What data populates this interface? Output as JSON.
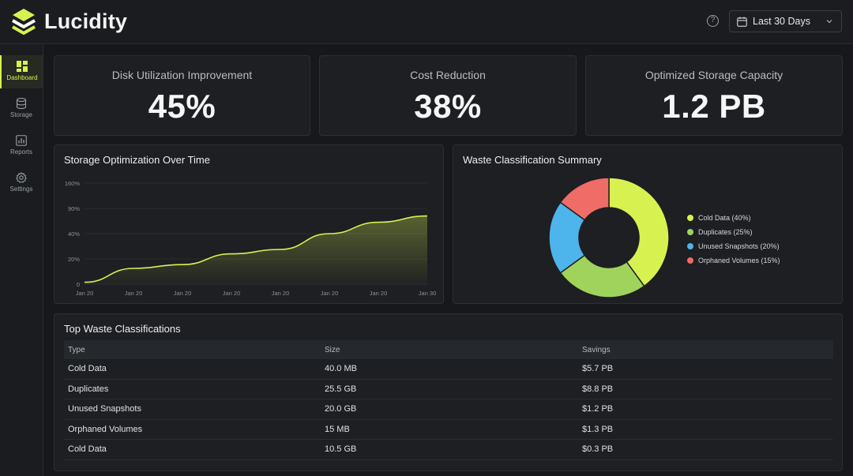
{
  "app": {
    "name": "Lucidity"
  },
  "header": {
    "date_range": "Last 30 Days",
    "help_icon": "help-circle-icon"
  },
  "sidebar": {
    "items": [
      {
        "label": "Dashboard",
        "icon": "grid-icon"
      },
      {
        "label": "Storage",
        "icon": "database-icon"
      },
      {
        "label": "Reports",
        "icon": "bar-chart-icon"
      },
      {
        "label": "Settings",
        "icon": "gear-icon"
      }
    ]
  },
  "kpis": [
    {
      "label": "Disk Utilization Improvement",
      "value": "45%"
    },
    {
      "label": "Cost Reduction",
      "value": "38%"
    },
    {
      "label": "Optimized Storage Capacity",
      "value": "1.2 PB"
    }
  ],
  "colors": {
    "accent": "#d7f250",
    "green": "#9fd35c",
    "blue": "#4db4ec",
    "red": "#f06c66"
  },
  "chart_data": [
    {
      "type": "area",
      "title": "Storage Optimization Over Time",
      "x": [
        "Jan 20",
        "Jan 20",
        "Jan 20",
        "Jan 20",
        "Jan 20",
        "Jan 20",
        "Jan 20",
        "Jan 30"
      ],
      "y_ticks": [
        "0",
        "20%",
        "40%",
        "90%",
        "160%"
      ],
      "values": [
        3,
        25,
        31,
        48,
        55,
        80,
        98,
        108
      ],
      "ylim": [
        0,
        160
      ],
      "grid": true
    },
    {
      "type": "pie",
      "title": "Waste Classification Summary",
      "slices": [
        {
          "label": "Cold Data (40%)",
          "value": 40,
          "color": "#d7f250"
        },
        {
          "label": "Duplicates (25%)",
          "value": 25,
          "color": "#9fd35c"
        },
        {
          "label": "Unused Snapshots (20%)",
          "value": 20,
          "color": "#4db4ec"
        },
        {
          "label": "Orphaned Volumes (15%)",
          "value": 15,
          "color": "#f06c66"
        }
      ],
      "legend": "right"
    }
  ],
  "table": {
    "title": "Top Waste Classifications",
    "columns": [
      "Type",
      "Size",
      "Savings"
    ],
    "rows": [
      [
        "Cold Data",
        "40.0 MB",
        "$5.7 PB"
      ],
      [
        "Duplicates",
        "25.5 GB",
        "$8.8 PB"
      ],
      [
        "Unused Snapshots",
        "20.0 GB",
        "$1.2 PB"
      ],
      [
        "Orphaned Volumes",
        "15 MB",
        "$1.3 PB"
      ],
      [
        "Cold Data",
        "10.5 GB",
        "$0.3 PB"
      ]
    ]
  }
}
